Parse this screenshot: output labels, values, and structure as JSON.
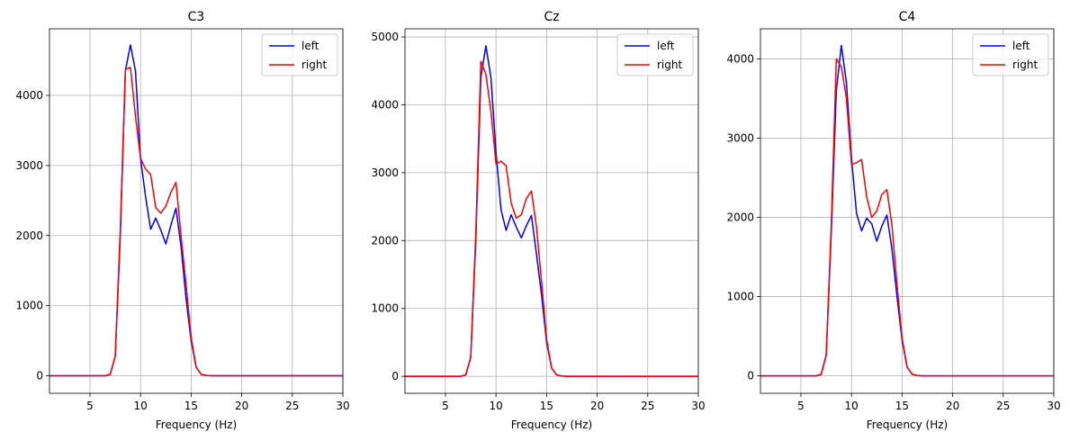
{
  "chart_data": [
    {
      "type": "line",
      "title": "C3",
      "xlabel": "Frequency (Hz)",
      "ylabel": "",
      "xlim": [
        1,
        30
      ],
      "ylim": [
        -250,
        4950
      ],
      "xticks": [
        5,
        10,
        15,
        20,
        25,
        30
      ],
      "yticks": [
        0,
        1000,
        2000,
        3000,
        4000
      ],
      "grid": true,
      "legend_position": "top-right",
      "x": [
        1,
        1.5,
        2,
        2.5,
        3,
        3.5,
        4,
        4.5,
        5,
        5.5,
        6,
        6.5,
        7,
        7.5,
        8,
        8.5,
        9,
        9.5,
        10,
        10.5,
        11,
        11.5,
        12,
        12.5,
        13,
        13.5,
        14,
        14.5,
        15,
        15.5,
        16,
        16.5,
        17,
        17.5,
        18,
        18.5,
        19,
        19.5,
        20,
        20.5,
        21,
        21.5,
        22,
        22.5,
        23,
        23.5,
        24,
        24.5,
        25,
        25.5,
        26,
        26.5,
        27,
        27.5,
        28,
        28.5,
        29,
        29.5,
        30
      ],
      "series": [
        {
          "name": "left",
          "color": "#0000ff",
          "values": [
            0,
            0,
            0,
            0,
            0,
            0,
            0,
            0,
            0,
            0,
            0,
            0,
            20,
            280,
            2000,
            4350,
            4720,
            4350,
            3100,
            2550,
            2090,
            2250,
            2080,
            1880,
            2150,
            2390,
            1850,
            1100,
            500,
            120,
            20,
            5,
            0,
            0,
            0,
            0,
            0,
            0,
            0,
            0,
            0,
            0,
            0,
            0,
            0,
            0,
            0,
            0,
            0,
            0,
            0,
            0,
            0,
            0,
            0,
            0,
            0,
            0,
            0
          ]
        },
        {
          "name": "right",
          "color": "#ff0000",
          "values": [
            0,
            0,
            0,
            0,
            0,
            0,
            0,
            0,
            0,
            0,
            0,
            0,
            20,
            280,
            2100,
            4370,
            4400,
            3700,
            3100,
            2950,
            2870,
            2400,
            2320,
            2420,
            2620,
            2760,
            2000,
            1300,
            550,
            120,
            20,
            5,
            0,
            0,
            0,
            0,
            0,
            0,
            0,
            0,
            0,
            0,
            0,
            0,
            0,
            0,
            0,
            0,
            0,
            0,
            0,
            0,
            0,
            0,
            0,
            0,
            0,
            0,
            0
          ]
        }
      ]
    },
    {
      "type": "line",
      "title": "Cz",
      "xlabel": "Frequency (Hz)",
      "ylabel": "",
      "xlim": [
        1,
        30
      ],
      "ylim": [
        -250,
        5120
      ],
      "xticks": [
        5,
        10,
        15,
        20,
        25,
        30
      ],
      "yticks": [
        0,
        1000,
        2000,
        3000,
        4000,
        5000
      ],
      "grid": true,
      "legend_position": "top-right",
      "x": [
        1,
        1.5,
        2,
        2.5,
        3,
        3.5,
        4,
        4.5,
        5,
        5.5,
        6,
        6.5,
        7,
        7.5,
        8,
        8.5,
        9,
        9.5,
        10,
        10.5,
        11,
        11.5,
        12,
        12.5,
        13,
        13.5,
        14,
        14.5,
        15,
        15.5,
        16,
        16.5,
        17,
        17.5,
        18,
        18.5,
        19,
        19.5,
        20,
        20.5,
        21,
        21.5,
        22,
        22.5,
        23,
        23.5,
        24,
        24.5,
        25,
        25.5,
        26,
        26.5,
        27,
        27.5,
        28,
        28.5,
        29,
        29.5,
        30
      ],
      "series": [
        {
          "name": "left",
          "color": "#0000ff",
          "values": [
            0,
            0,
            0,
            0,
            0,
            0,
            0,
            0,
            0,
            0,
            0,
            0,
            20,
            280,
            2000,
            4400,
            4870,
            4400,
            3300,
            2450,
            2150,
            2380,
            2200,
            2040,
            2220,
            2370,
            1800,
            1200,
            500,
            120,
            20,
            5,
            0,
            0,
            0,
            0,
            0,
            0,
            0,
            0,
            0,
            0,
            0,
            0,
            0,
            0,
            0,
            0,
            0,
            0,
            0,
            0,
            0,
            0,
            0,
            0,
            0,
            0,
            0
          ]
        },
        {
          "name": "right",
          "color": "#ff0000",
          "values": [
            0,
            0,
            0,
            0,
            0,
            0,
            0,
            0,
            0,
            0,
            0,
            0,
            20,
            280,
            2100,
            4640,
            4450,
            3900,
            3130,
            3170,
            3100,
            2550,
            2330,
            2380,
            2620,
            2730,
            2200,
            1400,
            550,
            120,
            20,
            5,
            0,
            0,
            0,
            0,
            0,
            0,
            0,
            0,
            0,
            0,
            0,
            0,
            0,
            0,
            0,
            0,
            0,
            0,
            0,
            0,
            0,
            0,
            0,
            0,
            0,
            0,
            0
          ]
        }
      ]
    },
    {
      "type": "line",
      "title": "C4",
      "xlabel": "Frequency (Hz)",
      "ylabel": "",
      "xlim": [
        1,
        30
      ],
      "ylim": [
        -220,
        4380
      ],
      "xticks": [
        5,
        10,
        15,
        20,
        25,
        30
      ],
      "yticks": [
        0,
        1000,
        2000,
        3000,
        4000
      ],
      "grid": true,
      "legend_position": "top-right",
      "x": [
        1,
        1.5,
        2,
        2.5,
        3,
        3.5,
        4,
        4.5,
        5,
        5.5,
        6,
        6.5,
        7,
        7.5,
        8,
        8.5,
        9,
        9.5,
        10,
        10.5,
        11,
        11.5,
        12,
        12.5,
        13,
        13.5,
        14,
        14.5,
        15,
        15.5,
        16,
        16.5,
        17,
        17.5,
        18,
        18.5,
        19,
        19.5,
        20,
        20.5,
        21,
        21.5,
        22,
        22.5,
        23,
        23.5,
        24,
        24.5,
        25,
        25.5,
        26,
        26.5,
        27,
        27.5,
        28,
        28.5,
        29,
        29.5,
        30
      ],
      "series": [
        {
          "name": "left",
          "color": "#0000ff",
          "values": [
            0,
            0,
            0,
            0,
            0,
            0,
            0,
            0,
            0,
            0,
            0,
            0,
            20,
            260,
            1800,
            3600,
            4170,
            3700,
            2750,
            2050,
            1830,
            1990,
            1920,
            1700,
            1890,
            2030,
            1600,
            1000,
            450,
            110,
            20,
            5,
            0,
            0,
            0,
            0,
            0,
            0,
            0,
            0,
            0,
            0,
            0,
            0,
            0,
            0,
            0,
            0,
            0,
            0,
            0,
            0,
            0,
            0,
            0,
            0,
            0,
            0,
            0
          ]
        },
        {
          "name": "right",
          "color": "#ff0000",
          "values": [
            0,
            0,
            0,
            0,
            0,
            0,
            0,
            0,
            0,
            0,
            0,
            0,
            20,
            260,
            1900,
            4000,
            3900,
            3500,
            2670,
            2690,
            2730,
            2260,
            2000,
            2080,
            2290,
            2350,
            1900,
            1150,
            480,
            110,
            20,
            5,
            0,
            0,
            0,
            0,
            0,
            0,
            0,
            0,
            0,
            0,
            0,
            0,
            0,
            0,
            0,
            0,
            0,
            0,
            0,
            0,
            0,
            0,
            0,
            0,
            0,
            0,
            0
          ]
        }
      ]
    }
  ]
}
